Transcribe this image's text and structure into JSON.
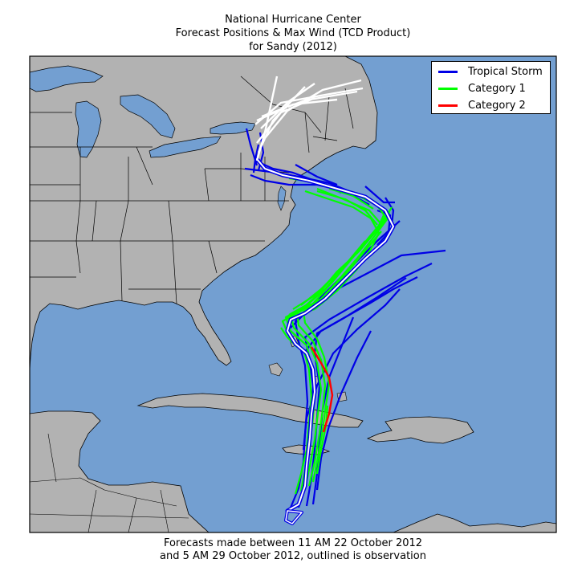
{
  "title": {
    "line1": "National Hurricane Center",
    "line2": "Forecast Positions & Max Wind (TCD Product)",
    "line3": "for Sandy (2012)"
  },
  "legend": {
    "items": [
      {
        "label": "Tropical Storm",
        "color": "#0000e6"
      },
      {
        "label": "Category 1",
        "color": "#00ff00"
      },
      {
        "label": "Category 2",
        "color": "#ff0000"
      }
    ]
  },
  "colors": {
    "ocean": "#739fd1",
    "land": "#b2b2b2",
    "border": "#000000",
    "observed": "#ffffff"
  },
  "caption": {
    "line1": "Forecasts made between 11 AM 22 October 2012",
    "line2": "and 5 AM 29 October 2012, outlined is observation"
  }
}
